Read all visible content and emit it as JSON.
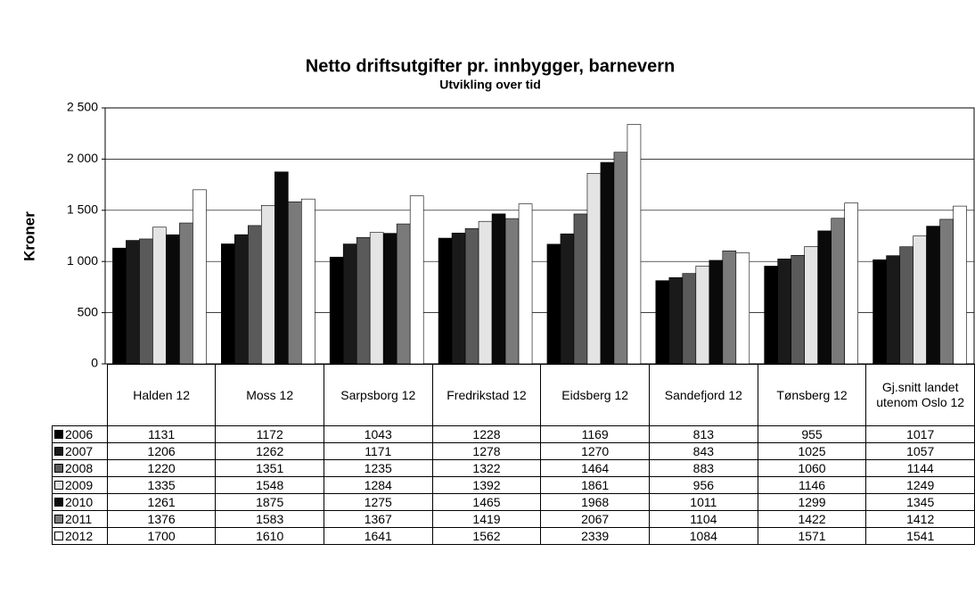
{
  "chart_data": {
    "type": "bar",
    "title": "Netto driftsutgifter pr. innbygger, barnevern",
    "subtitle": "Utvikling over tid",
    "y_label": "Kroner",
    "categories": [
      "Halden 12",
      "Moss 12",
      "Sarpsborg 12",
      "Fredrikstad 12",
      "Eidsberg 12",
      "Sandefjord 12",
      "Tønsberg 12",
      "Gj.snitt landet utenom Oslo 12"
    ],
    "series": [
      {
        "name": "2006",
        "color": "#000000",
        "values": [
          1131,
          1172,
          1043,
          1228,
          1169,
          813,
          955,
          1017
        ]
      },
      {
        "name": "2007",
        "color": "#1a1a1a",
        "values": [
          1206,
          1262,
          1171,
          1278,
          1270,
          843,
          1025,
          1057
        ]
      },
      {
        "name": "2008",
        "color": "#5a5a5a",
        "values": [
          1220,
          1351,
          1235,
          1322,
          1464,
          883,
          1060,
          1144
        ]
      },
      {
        "name": "2009",
        "color": "#e4e4e4",
        "values": [
          1335,
          1548,
          1284,
          1392,
          1861,
          956,
          1146,
          1249
        ]
      },
      {
        "name": "2010",
        "color": "#0a0a0a",
        "values": [
          1261,
          1875,
          1275,
          1465,
          1968,
          1011,
          1299,
          1345
        ]
      },
      {
        "name": "2011",
        "color": "#7a7a7a",
        "values": [
          1376,
          1583,
          1367,
          1419,
          2067,
          1104,
          1422,
          1412
        ]
      },
      {
        "name": "2012",
        "color": "#ffffff",
        "values": [
          1700,
          1610,
          1641,
          1562,
          2339,
          1084,
          1571,
          1541
        ]
      }
    ],
    "ylim": [
      0,
      2500
    ],
    "yticks": [
      0,
      500,
      {
        "value": 1000,
        "label": "1 000"
      },
      {
        "value": 1500,
        "label": "1 500"
      },
      {
        "value": 2000,
        "label": "2 000"
      },
      {
        "value": 2500,
        "label": "2 500"
      }
    ],
    "grid": true
  }
}
